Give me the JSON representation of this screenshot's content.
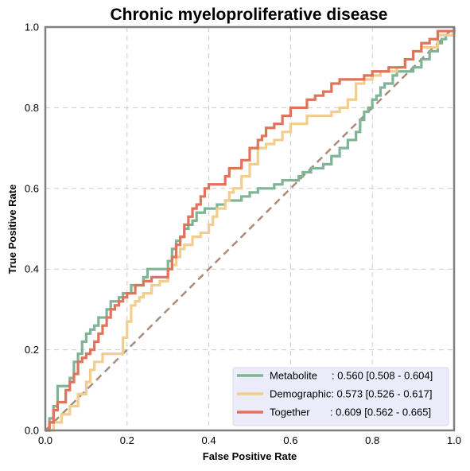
{
  "chart_data": {
    "type": "line",
    "title": "Chronic myeloproliferative disease",
    "xlabel": "False Positive Rate",
    "ylabel": "True Positive Rate",
    "xlim": [
      0,
      1
    ],
    "ylim": [
      0,
      1
    ],
    "xticks": [
      "0.0",
      "0.2",
      "0.4",
      "0.6",
      "0.8",
      "1.0"
    ],
    "yticks": [
      "0.0",
      "0.2",
      "0.4",
      "0.6",
      "0.8",
      "1.0"
    ],
    "grid": true,
    "legend_position": "bottom-right",
    "diagonal": {
      "x": [
        0,
        1
      ],
      "y": [
        0,
        1
      ],
      "color": "#a88c7c"
    },
    "series": [
      {
        "name": "Metabolite",
        "auc_label": "     : 0.560 [0.508 - 0.604]",
        "color": "#7fb496",
        "x": [
          0,
          0.01,
          0.02,
          0.03,
          0.04,
          0.06,
          0.07,
          0.08,
          0.09,
          0.1,
          0.11,
          0.12,
          0.13,
          0.14,
          0.15,
          0.16,
          0.17,
          0.18,
          0.19,
          0.2,
          0.21,
          0.22,
          0.24,
          0.25,
          0.28,
          0.3,
          0.31,
          0.32,
          0.33,
          0.34,
          0.35,
          0.36,
          0.37,
          0.38,
          0.39,
          0.4,
          0.42,
          0.44,
          0.46,
          0.48,
          0.5,
          0.52,
          0.54,
          0.56,
          0.58,
          0.6,
          0.62,
          0.63,
          0.65,
          0.67,
          0.68,
          0.7,
          0.72,
          0.74,
          0.76,
          0.77,
          0.78,
          0.79,
          0.8,
          0.81,
          0.82,
          0.83,
          0.85,
          0.86,
          0.88,
          0.9,
          0.92,
          0.94,
          0.96,
          0.97,
          0.98,
          1.0
        ],
        "y": [
          0,
          0.03,
          0.06,
          0.11,
          0.11,
          0.13,
          0.17,
          0.19,
          0.22,
          0.24,
          0.25,
          0.26,
          0.28,
          0.28,
          0.3,
          0.32,
          0.32,
          0.33,
          0.34,
          0.34,
          0.36,
          0.36,
          0.38,
          0.4,
          0.4,
          0.42,
          0.45,
          0.47,
          0.48,
          0.5,
          0.51,
          0.52,
          0.54,
          0.54,
          0.55,
          0.55,
          0.56,
          0.57,
          0.57,
          0.58,
          0.59,
          0.6,
          0.6,
          0.61,
          0.62,
          0.62,
          0.63,
          0.64,
          0.65,
          0.65,
          0.66,
          0.68,
          0.7,
          0.72,
          0.74,
          0.77,
          0.79,
          0.8,
          0.82,
          0.83,
          0.85,
          0.86,
          0.88,
          0.89,
          0.89,
          0.9,
          0.92,
          0.94,
          0.96,
          0.97,
          0.98,
          1.0
        ]
      },
      {
        "name": "Demographic",
        "auc_label": ": 0.573 [0.526 - 0.617]",
        "color": "#f3cd8e",
        "x": [
          0,
          0.02,
          0.04,
          0.06,
          0.08,
          0.1,
          0.11,
          0.12,
          0.14,
          0.18,
          0.19,
          0.2,
          0.21,
          0.22,
          0.23,
          0.24,
          0.26,
          0.28,
          0.3,
          0.31,
          0.32,
          0.33,
          0.34,
          0.36,
          0.38,
          0.4,
          0.41,
          0.42,
          0.44,
          0.45,
          0.46,
          0.48,
          0.5,
          0.52,
          0.54,
          0.56,
          0.58,
          0.6,
          0.62,
          0.64,
          0.66,
          0.68,
          0.7,
          0.72,
          0.74,
          0.76,
          0.78,
          0.8,
          0.82,
          0.84,
          0.86,
          0.88,
          0.9,
          0.92,
          0.94,
          0.96,
          1.0
        ],
        "y": [
          0,
          0.02,
          0.04,
          0.06,
          0.09,
          0.12,
          0.15,
          0.17,
          0.19,
          0.19,
          0.23,
          0.27,
          0.31,
          0.32,
          0.33,
          0.34,
          0.36,
          0.37,
          0.4,
          0.41,
          0.43,
          0.45,
          0.46,
          0.48,
          0.49,
          0.51,
          0.53,
          0.55,
          0.57,
          0.59,
          0.6,
          0.63,
          0.66,
          0.7,
          0.71,
          0.72,
          0.74,
          0.76,
          0.76,
          0.78,
          0.78,
          0.78,
          0.79,
          0.8,
          0.82,
          0.86,
          0.87,
          0.88,
          0.89,
          0.89,
          0.9,
          0.92,
          0.94,
          0.95,
          0.95,
          0.98,
          1.0
        ]
      },
      {
        "name": "Together",
        "auc_label": "       : 0.609 [0.562 - 0.665]",
        "color": "#e0735a",
        "x": [
          0,
          0.01,
          0.02,
          0.03,
          0.05,
          0.06,
          0.07,
          0.08,
          0.09,
          0.1,
          0.11,
          0.12,
          0.13,
          0.14,
          0.15,
          0.16,
          0.17,
          0.18,
          0.19,
          0.2,
          0.22,
          0.24,
          0.26,
          0.28,
          0.3,
          0.31,
          0.32,
          0.33,
          0.34,
          0.35,
          0.36,
          0.37,
          0.38,
          0.39,
          0.4,
          0.42,
          0.44,
          0.45,
          0.47,
          0.48,
          0.5,
          0.52,
          0.53,
          0.54,
          0.56,
          0.58,
          0.6,
          0.62,
          0.64,
          0.66,
          0.68,
          0.7,
          0.72,
          0.74,
          0.76,
          0.78,
          0.8,
          0.82,
          0.84,
          0.86,
          0.88,
          0.9,
          0.92,
          0.94,
          0.96,
          1.0
        ],
        "y": [
          0,
          0.02,
          0.05,
          0.07,
          0.1,
          0.12,
          0.14,
          0.17,
          0.18,
          0.19,
          0.2,
          0.22,
          0.24,
          0.26,
          0.28,
          0.3,
          0.31,
          0.32,
          0.33,
          0.34,
          0.36,
          0.37,
          0.38,
          0.38,
          0.4,
          0.43,
          0.46,
          0.48,
          0.51,
          0.53,
          0.55,
          0.56,
          0.58,
          0.6,
          0.61,
          0.61,
          0.63,
          0.65,
          0.65,
          0.67,
          0.7,
          0.72,
          0.73,
          0.75,
          0.76,
          0.78,
          0.8,
          0.8,
          0.82,
          0.83,
          0.84,
          0.86,
          0.87,
          0.87,
          0.87,
          0.88,
          0.89,
          0.89,
          0.9,
          0.9,
          0.92,
          0.94,
          0.96,
          0.97,
          0.99,
          1.0
        ]
      }
    ]
  }
}
